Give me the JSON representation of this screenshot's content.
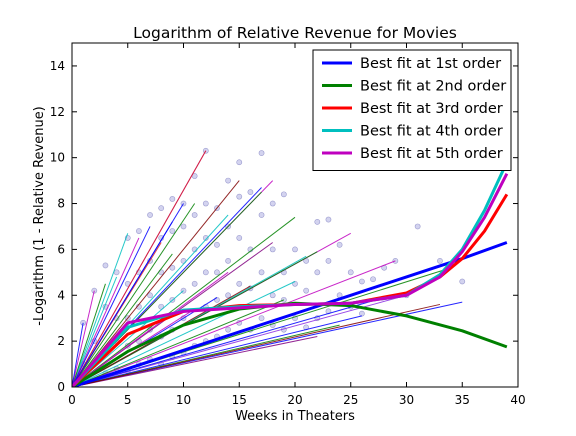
{
  "chart_data": {
    "type": "line",
    "title": "Logarithm of Relative Revenue for Movies",
    "xlabel": "Weeks in Theaters",
    "ylabel": "-Logarithm (1 - Relative Revenue)",
    "xlim": [
      0,
      40
    ],
    "ylim": [
      0,
      15
    ],
    "xticks": [
      0,
      5,
      10,
      15,
      20,
      25,
      30,
      35,
      40
    ],
    "yticks": [
      0,
      2,
      4,
      6,
      8,
      10,
      12,
      14
    ],
    "grid": false,
    "legend_position": "top-right",
    "fit_series": [
      {
        "name": "Best fit at 1st order",
        "color": "#0000ff",
        "x": [
          0,
          5,
          10,
          15,
          20,
          25,
          30,
          35,
          39
        ],
        "y": [
          0,
          0.8,
          1.6,
          2.4,
          3.2,
          4.0,
          4.8,
          5.6,
          6.3
        ]
      },
      {
        "name": "Best fit at 2nd order",
        "color": "#008000",
        "x": [
          0,
          5,
          10,
          15,
          20,
          25,
          30,
          35,
          39
        ],
        "y": [
          0,
          1.55,
          2.7,
          3.4,
          3.65,
          3.55,
          3.1,
          2.45,
          1.75
        ]
      },
      {
        "name": "Best fit at 3rd order",
        "color": "#ff0000",
        "x": [
          0,
          5,
          10,
          15,
          20,
          25,
          30,
          33,
          35,
          37,
          39
        ],
        "y": [
          0,
          2.3,
          3.3,
          3.55,
          3.6,
          3.65,
          4.1,
          4.8,
          5.6,
          6.8,
          8.4
        ]
      },
      {
        "name": "Best fit at 4th order",
        "color": "#00bfbf",
        "x": [
          0,
          5,
          10,
          15,
          20,
          25,
          30,
          33,
          35,
          37,
          39
        ],
        "y": [
          0,
          2.6,
          3.35,
          3.5,
          3.6,
          3.65,
          4.0,
          4.9,
          6.0,
          7.7,
          9.8
        ]
      },
      {
        "name": "Best fit at 5th order",
        "color": "#bf00bf",
        "x": [
          0,
          5,
          10,
          15,
          20,
          25,
          30,
          33,
          35,
          37,
          39
        ],
        "y": [
          0,
          2.8,
          3.3,
          3.45,
          3.6,
          3.65,
          4.0,
          4.8,
          5.9,
          7.4,
          9.3
        ]
      }
    ],
    "movie_series": [
      {
        "color": "#bf00bf",
        "x": [
          0,
          12
        ],
        "y": [
          0,
          10.3
        ]
      },
      {
        "color": "#d62728",
        "x": [
          0,
          12
        ],
        "y": [
          0,
          10.3
        ]
      },
      {
        "color": "#0000ff",
        "x": [
          0,
          10
        ],
        "y": [
          0,
          8.0
        ]
      },
      {
        "color": "#008000",
        "x": [
          0,
          11
        ],
        "y": [
          0,
          8.0
        ]
      },
      {
        "color": "#00bfbf",
        "x": [
          0,
          5
        ],
        "y": [
          0,
          6.7
        ]
      },
      {
        "color": "#00bfbf",
        "x": [
          0,
          4
        ],
        "y": [
          0,
          4.8
        ]
      },
      {
        "color": "#008000",
        "x": [
          0,
          3
        ],
        "y": [
          0,
          4.5
        ]
      },
      {
        "color": "#bf00bf",
        "x": [
          0,
          6
        ],
        "y": [
          0,
          6.5
        ]
      },
      {
        "color": "#0000ff",
        "x": [
          0,
          7
        ],
        "y": [
          0,
          7.0
        ]
      },
      {
        "color": "#800000",
        "x": [
          0,
          15
        ],
        "y": [
          0,
          9.0
        ]
      },
      {
        "color": "#bf00bf",
        "x": [
          0,
          18
        ],
        "y": [
          0,
          9.0
        ]
      },
      {
        "color": "#0000ff",
        "x": [
          0,
          17
        ],
        "y": [
          0,
          8.7
        ]
      },
      {
        "color": "#008000",
        "x": [
          0,
          17
        ],
        "y": [
          0,
          8.5
        ]
      },
      {
        "color": "#00bfbf",
        "x": [
          0,
          14
        ],
        "y": [
          0,
          7.5
        ]
      },
      {
        "color": "#008000",
        "x": [
          0,
          20
        ],
        "y": [
          0,
          7.4
        ]
      },
      {
        "color": "#800080",
        "x": [
          0,
          18
        ],
        "y": [
          0,
          6.3
        ]
      },
      {
        "color": "#bf00bf",
        "x": [
          0,
          25
        ],
        "y": [
          0,
          6.7
        ]
      },
      {
        "color": "#00bfbf",
        "x": [
          0,
          21
        ],
        "y": [
          0,
          5.7
        ]
      },
      {
        "color": "#008000",
        "x": [
          0,
          22
        ],
        "y": [
          0,
          5.9
        ]
      },
      {
        "color": "#bf00bf",
        "x": [
          0,
          29
        ],
        "y": [
          0,
          5.5
        ]
      },
      {
        "color": "#800000",
        "x": [
          0,
          16
        ],
        "y": [
          0,
          4.4
        ]
      },
      {
        "color": "#00bfbf",
        "x": [
          0,
          20
        ],
        "y": [
          0,
          4.6
        ]
      },
      {
        "color": "#008000",
        "x": [
          0,
          34
        ],
        "y": [
          0,
          5.2
        ]
      },
      {
        "color": "#0000ff",
        "x": [
          0,
          35
        ],
        "y": [
          0,
          3.7
        ]
      },
      {
        "color": "#8a2be2",
        "x": [
          0,
          30
        ],
        "y": [
          0,
          4.0
        ]
      },
      {
        "color": "#0000ff",
        "x": [
          0,
          26
        ],
        "y": [
          0,
          3.1
        ]
      },
      {
        "color": "#008000",
        "x": [
          0,
          24
        ],
        "y": [
          0,
          2.7
        ]
      },
      {
        "color": "#800080",
        "x": [
          0,
          22
        ],
        "y": [
          0,
          2.2
        ]
      },
      {
        "color": "#0000ff",
        "x": [
          0,
          13
        ],
        "y": [
          0,
          3.9
        ]
      },
      {
        "color": "#bf00bf",
        "x": [
          0,
          11
        ],
        "y": [
          0,
          3.4
        ]
      },
      {
        "color": "#008000",
        "x": [
          0,
          9
        ],
        "y": [
          0,
          5.8
        ]
      },
      {
        "color": "#d62728",
        "x": [
          0,
          8
        ],
        "y": [
          0,
          6.3
        ]
      },
      {
        "color": "#0000ff",
        "x": [
          0,
          9
        ],
        "y": [
          0,
          7.2
        ]
      },
      {
        "color": "#bf00bf",
        "x": [
          0,
          14
        ],
        "y": [
          0,
          5.0
        ]
      },
      {
        "color": "#00bfbf",
        "x": [
          0,
          10
        ],
        "y": [
          0,
          4.2
        ]
      },
      {
        "color": "#008000",
        "x": [
          0,
          19
        ],
        "y": [
          0,
          3.8
        ]
      },
      {
        "color": "#0000ff",
        "x": [
          0,
          28
        ],
        "y": [
          0,
          3.9
        ]
      },
      {
        "color": "#800000",
        "x": [
          0,
          33
        ],
        "y": [
          0,
          3.6
        ]
      },
      {
        "color": "#bf00bf",
        "x": [
          0,
          2
        ],
        "y": [
          0,
          4.2
        ]
      },
      {
        "color": "#0000ff",
        "x": [
          0,
          1
        ],
        "y": [
          0,
          2.8
        ]
      }
    ],
    "scatter_points": {
      "color": "#8080d0",
      "x": [
        1,
        1,
        1,
        2,
        2,
        2,
        3,
        3,
        3,
        3,
        4,
        4,
        4,
        4,
        5,
        5,
        5,
        5,
        5,
        6,
        6,
        6,
        6,
        6,
        7,
        7,
        7,
        7,
        7,
        8,
        8,
        8,
        8,
        8,
        8,
        9,
        9,
        9,
        9,
        9,
        9,
        10,
        10,
        10,
        10,
        10,
        10,
        11,
        11,
        11,
        11,
        11,
        12,
        12,
        12,
        12,
        12,
        12,
        13,
        13,
        13,
        13,
        13,
        14,
        14,
        14,
        14,
        14,
        15,
        15,
        15,
        15,
        15,
        16,
        16,
        16,
        16,
        17,
        17,
        17,
        17,
        18,
        18,
        18,
        18,
        19,
        19,
        19,
        19,
        20,
        20,
        20,
        21,
        21,
        21,
        22,
        22,
        22,
        23,
        23,
        23,
        24,
        24,
        25,
        25,
        26,
        26,
        27,
        28,
        29,
        30,
        31,
        33,
        35
      ],
      "y": [
        2.8,
        1.0,
        0.4,
        4.2,
        2.0,
        1.0,
        5.3,
        3.5,
        1.5,
        0.6,
        5.0,
        3.0,
        2.0,
        0.8,
        6.5,
        4.5,
        3.0,
        1.8,
        0.7,
        6.8,
        5.0,
        3.5,
        2.0,
        1.0,
        7.5,
        5.5,
        4.0,
        2.5,
        1.2,
        7.8,
        6.5,
        5.0,
        3.5,
        2.2,
        1.0,
        8.2,
        6.8,
        5.2,
        3.8,
        2.5,
        1.3,
        8.0,
        7.0,
        5.5,
        4.2,
        3.0,
        1.5,
        9.2,
        7.5,
        6.0,
        4.5,
        1.8,
        10.3,
        8.0,
        6.5,
        5.0,
        3.5,
        2.0,
        7.8,
        6.2,
        5.0,
        3.8,
        2.2,
        9.0,
        7.0,
        5.5,
        4.0,
        2.5,
        9.8,
        8.3,
        6.5,
        4.5,
        2.8,
        8.5,
        6.0,
        4.3,
        2.5,
        10.2,
        7.5,
        5.0,
        3.0,
        8.0,
        6.0,
        4.0,
        2.7,
        8.4,
        5.0,
        3.8,
        2.5,
        6.0,
        4.5,
        3.0,
        5.5,
        4.2,
        2.6,
        7.2,
        5.0,
        3.0,
        7.3,
        5.5,
        3.3,
        6.2,
        4.0,
        5.0,
        3.5,
        4.6,
        3.2,
        4.7,
        5.2,
        5.5,
        4.0,
        7.0,
        5.5,
        4.6
      ]
    }
  }
}
